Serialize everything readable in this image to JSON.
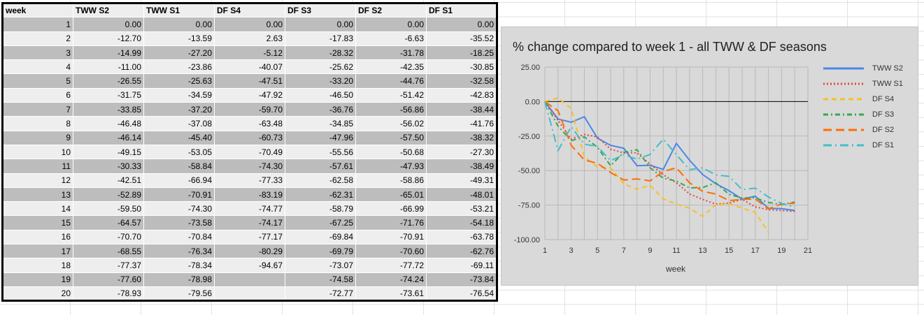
{
  "table": {
    "headers": [
      "week",
      "TWW S2",
      "TWW S1",
      "DF S4",
      "DF S3",
      "DF S2",
      "DF S1"
    ],
    "rows": [
      [
        "1",
        "0.00",
        "0.00",
        "0.00",
        "0.00",
        "0.00",
        "0.00"
      ],
      [
        "2",
        "-12.70",
        "-13.59",
        "2.63",
        "-17.83",
        "-6.63",
        "-35.52"
      ],
      [
        "3",
        "-14.99",
        "-27.20",
        "-5.12",
        "-28.32",
        "-31.78",
        "-18.25"
      ],
      [
        "4",
        "-11.00",
        "-23.86",
        "-40.07",
        "-25.62",
        "-42.35",
        "-30.85"
      ],
      [
        "5",
        "-26.55",
        "-25.63",
        "-47.51",
        "-33.20",
        "-44.76",
        "-32.58"
      ],
      [
        "6",
        "-31.75",
        "-34.59",
        "-47.92",
        "-46.50",
        "-51.42",
        "-42.83"
      ],
      [
        "7",
        "-33.85",
        "-37.20",
        "-59.70",
        "-36.76",
        "-56.86",
        "-38.44"
      ],
      [
        "8",
        "-46.48",
        "-37.08",
        "-63.48",
        "-34.85",
        "-56.02",
        "-41.76"
      ],
      [
        "9",
        "-46.14",
        "-45.40",
        "-60.73",
        "-47.96",
        "-57.50",
        "-38.32"
      ],
      [
        "10",
        "-49.15",
        "-53.05",
        "-70.49",
        "-55.56",
        "-50.68",
        "-27.30"
      ],
      [
        "11",
        "-30.33",
        "-58.84",
        "-74.30",
        "-57.61",
        "-47.93",
        "-38.49"
      ],
      [
        "12",
        "-42.51",
        "-66.94",
        "-77.33",
        "-62.58",
        "-58.86",
        "-49.31"
      ],
      [
        "13",
        "-52.89",
        "-70.91",
        "-83.19",
        "-62.31",
        "-65.01",
        "-48.01"
      ],
      [
        "14",
        "-59.50",
        "-74.30",
        "-74.77",
        "-58.79",
        "-66.99",
        "-53.21"
      ],
      [
        "15",
        "-64.57",
        "-73.58",
        "-74.17",
        "-67.25",
        "-71.76",
        "-54.18"
      ],
      [
        "16",
        "-70.70",
        "-70.84",
        "-77.17",
        "-69.84",
        "-70.91",
        "-63.78"
      ],
      [
        "17",
        "-68.55",
        "-76.34",
        "-80.29",
        "-69.79",
        "-70.60",
        "-62.76"
      ],
      [
        "18",
        "-77.37",
        "-78.34",
        "-94.67",
        "-73.07",
        "-77.72",
        "-69.11"
      ],
      [
        "19",
        "-77.60",
        "-78.98",
        "",
        "-74.58",
        "-74.24",
        "-73.84"
      ],
      [
        "20",
        "-78.93",
        "-79.56",
        "",
        "-72.77",
        "-73.61",
        "-76.54"
      ]
    ]
  },
  "chart_data": {
    "type": "line",
    "title": "% change compared to week 1 - all TWW & DF seasons",
    "xlabel": "week",
    "ylabel": "",
    "xlim": [
      1,
      21
    ],
    "ylim": [
      -100,
      25
    ],
    "xticks": [
      1,
      3,
      5,
      7,
      9,
      11,
      13,
      15,
      17,
      19,
      21
    ],
    "yticks": [
      25,
      0,
      -25,
      -50,
      -75,
      -100
    ],
    "ytick_labels": [
      "25.00",
      "0.00",
      "-25.00",
      "-50.00",
      "-75.00",
      "-100.00"
    ],
    "grid": true,
    "legend_position": "right",
    "x": [
      1,
      2,
      3,
      4,
      5,
      6,
      7,
      8,
      9,
      10,
      11,
      12,
      13,
      14,
      15,
      16,
      17,
      18,
      19,
      20
    ],
    "series": [
      {
        "name": "TWW S2",
        "color": "#4a86e8",
        "dash": "solid",
        "values": [
          0,
          -12.7,
          -14.99,
          -11.0,
          -26.55,
          -31.75,
          -33.85,
          -46.48,
          -46.14,
          -49.15,
          -30.33,
          -42.51,
          -52.89,
          -59.5,
          -64.57,
          -70.7,
          -68.55,
          -77.37,
          -77.6,
          -78.93
        ]
      },
      {
        "name": "TWW S1",
        "color": "#e0483c",
        "dash": "dot",
        "values": [
          0,
          -13.59,
          -27.2,
          -23.86,
          -25.63,
          -34.59,
          -37.2,
          -37.08,
          -45.4,
          -53.05,
          -58.84,
          -66.94,
          -70.91,
          -74.3,
          -73.58,
          -70.84,
          -76.34,
          -78.34,
          -78.98,
          -79.56
        ]
      },
      {
        "name": "DF S4",
        "color": "#f6c026",
        "dash": "dash",
        "values": [
          0,
          2.63,
          -5.12,
          -40.07,
          -47.51,
          -47.92,
          -59.7,
          -63.48,
          -60.73,
          -70.49,
          -74.3,
          -77.33,
          -83.19,
          -74.77,
          -74.17,
          -77.17,
          -80.29,
          -94.67,
          null,
          null
        ]
      },
      {
        "name": "DF S3",
        "color": "#34a853",
        "dash": "dashdot",
        "values": [
          0,
          -17.83,
          -28.32,
          -25.62,
          -33.2,
          -46.5,
          -36.76,
          -34.85,
          -47.96,
          -55.56,
          -57.61,
          -62.58,
          -62.31,
          -58.79,
          -67.25,
          -69.84,
          -69.79,
          -73.07,
          -74.58,
          -72.77
        ]
      },
      {
        "name": "DF S2",
        "color": "#ff6d01",
        "dash": "longdash",
        "values": [
          0,
          -6.63,
          -31.78,
          -42.35,
          -44.76,
          -51.42,
          -56.86,
          -56.02,
          -57.5,
          -50.68,
          -47.93,
          -58.86,
          -65.01,
          -66.99,
          -71.76,
          -70.91,
          -70.6,
          -77.72,
          -74.24,
          -73.61
        ]
      },
      {
        "name": "DF S1",
        "color": "#46bdc6",
        "dash": "longdashdot",
        "values": [
          0,
          -35.52,
          -18.25,
          -30.85,
          -32.58,
          -42.83,
          -38.44,
          -41.76,
          -38.32,
          -27.3,
          -38.49,
          -49.31,
          -48.01,
          -53.21,
          -54.18,
          -63.78,
          -62.76,
          -69.11,
          -73.84,
          -76.54
        ]
      }
    ]
  }
}
